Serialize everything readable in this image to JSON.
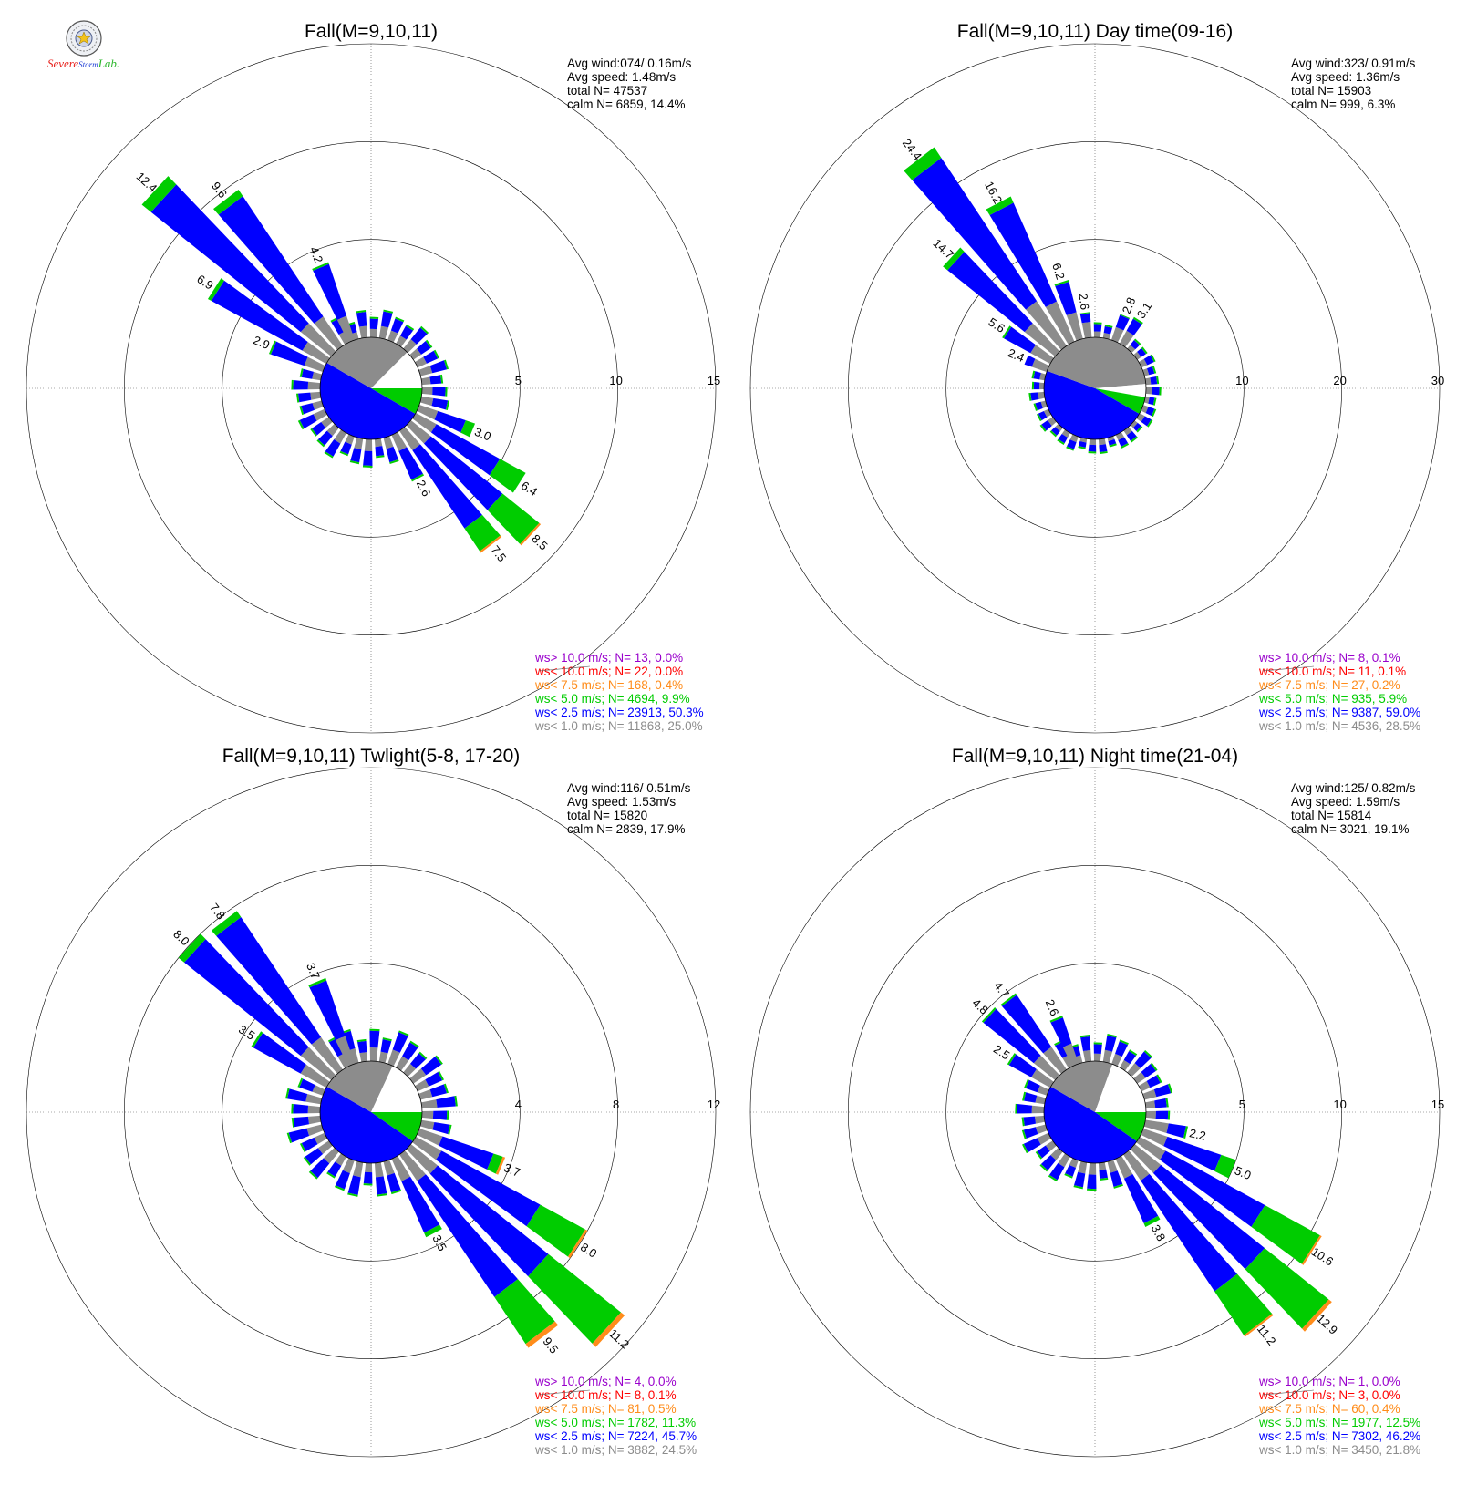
{
  "logo": {
    "line1": "Severe",
    "line2": "Storm",
    "line3": "Lab.",
    "colors": [
      "#e8231e",
      "#1f3fd6",
      "#2cb72c"
    ]
  },
  "colors": {
    "speed_bins": [
      "#8c8c8c",
      "#0000ff",
      "#00cc00",
      "#ff8c1a",
      "#ff0000",
      "#9900cc"
    ],
    "calm_wedge": "#ffffff"
  },
  "chart_data": [
    {
      "type": "windrose",
      "title": "Fall(M=9,10,11)",
      "stats": {
        "avg_wind": "Avg wind:074/ 0.16m/s",
        "avg_speed": "Avg speed: 1.48m/s",
        "total": "total N=       47537",
        "calm": "calm N=    6859,  14.4%"
      },
      "ring_labels": [
        "5",
        "10",
        "15"
      ],
      "rmax": 15,
      "petals": [
        {
          "dir": 112.5,
          "total": 3.0,
          "label": "3.0",
          "segs": [
            1.0,
            1.5,
            0.5
          ]
        },
        {
          "dir": 122.5,
          "total": 6.4,
          "label": "6.4",
          "segs": [
            1.2,
            3.7,
            1.5
          ]
        },
        {
          "dir": 132.5,
          "total": 8.5,
          "label": "8.5",
          "segs": [
            1.3,
            4.7,
            2.4,
            0.1
          ]
        },
        {
          "dir": 142.5,
          "total": 7.5,
          "label": "7.5",
          "segs": [
            1.2,
            4.8,
            1.4,
            0.1
          ]
        },
        {
          "dir": 152.5,
          "total": 2.6,
          "label": "2.6",
          "segs": [
            0.9,
            1.6,
            0.1
          ]
        },
        {
          "dir": 292.5,
          "total": 2.9,
          "label": "2.9",
          "segs": [
            1.0,
            1.8,
            0.1
          ]
        },
        {
          "dir": 302.5,
          "total": 6.9,
          "label": "6.9",
          "segs": [
            1.4,
            5.3,
            0.2
          ]
        },
        {
          "dir": 312.5,
          "total": 12.4,
          "label": "12.4",
          "segs": [
            2.0,
            9.8,
            0.6
          ]
        },
        {
          "dir": 322.5,
          "total": 9.6,
          "label": "9.6",
          "segs": [
            1.8,
            7.4,
            0.4
          ]
        },
        {
          "dir": 337.5,
          "total": 4.2,
          "label": "4.2",
          "segs": [
            1.3,
            2.8,
            0.1
          ]
        }
      ],
      "legend": [
        {
          "text": "ws> 10.0 m/s; N=    13,  0.0%",
          "color": "#9900cc"
        },
        {
          "text": "ws< 10.0 m/s; N=    22,  0.0%",
          "color": "#ff0000"
        },
        {
          "text": "ws<  7.5 m/s; N=   168,  0.4%",
          "color": "#ff8c1a"
        },
        {
          "text": "ws<  5.0 m/s; N=  4694,  9.9%",
          "color": "#00cc00"
        },
        {
          "text": "ws<  2.5 m/s; N= 23913, 50.3%",
          "color": "#0000ff"
        },
        {
          "text": "ws<  1.0 m/s; N= 11868, 25.0%",
          "color": "#8c8c8c"
        }
      ]
    },
    {
      "type": "windrose",
      "title": "Fall(M=9,10,11) Day time(09-16)",
      "stats": {
        "avg_wind": "Avg wind:323/ 0.91m/s",
        "avg_speed": "Avg speed: 1.36m/s",
        "total": "total N=       15903",
        "calm": "calm N=     999,   6.3%"
      },
      "ring_labels": [
        "10",
        "20",
        "30"
      ],
      "rmax": 30,
      "petals": [
        {
          "dir": 22.5,
          "total": 2.8,
          "label": "2.8",
          "segs": [
            1.4,
            1.3,
            0.1
          ]
        },
        {
          "dir": 32.5,
          "total": 3.1,
          "label": "3.1",
          "segs": [
            1.5,
            1.4,
            0.2
          ]
        },
        {
          "dir": 292.5,
          "total": 2.4,
          "label": "2.4",
          "segs": [
            1.6,
            0.8
          ]
        },
        {
          "dir": 302.5,
          "total": 5.6,
          "label": "5.6",
          "segs": [
            2.3,
            3.1,
            0.2
          ]
        },
        {
          "dir": 312.5,
          "total": 14.7,
          "label": "14.7",
          "segs": [
            4.0,
            10.1,
            0.6
          ]
        },
        {
          "dir": 322.5,
          "total": 24.4,
          "label": "24.4",
          "segs": [
            5.5,
            17.6,
            1.3
          ]
        },
        {
          "dir": 332.5,
          "total": 16.2,
          "label": "16.2",
          "segs": [
            4.5,
            11.0,
            0.7
          ]
        },
        {
          "dir": 342.5,
          "total": 6.2,
          "label": "6.2",
          "segs": [
            2.8,
            3.2,
            0.2
          ]
        },
        {
          "dir": 352.5,
          "total": 2.6,
          "label": "2.6",
          "segs": [
            1.6,
            0.9,
            0.1
          ]
        }
      ],
      "legend": [
        {
          "text": "ws> 10.0 m/s; N=     8,  0.1%",
          "color": "#9900cc"
        },
        {
          "text": "ws< 10.0 m/s; N=    11,  0.1%",
          "color": "#ff0000"
        },
        {
          "text": "ws<  7.5 m/s; N=    27,  0.2%",
          "color": "#ff8c1a"
        },
        {
          "text": "ws<  5.0 m/s; N=   935,  5.9%",
          "color": "#00cc00"
        },
        {
          "text": "ws<  2.5 m/s; N=  9387, 59.0%",
          "color": "#0000ff"
        },
        {
          "text": "ws<  1.0 m/s; N=  4536, 28.5%",
          "color": "#8c8c8c"
        }
      ]
    },
    {
      "type": "windrose",
      "title": "Fall(M=9,10,11) Twlight(5-8, 17-20)",
      "stats": {
        "avg_wind": "Avg wind:116/ 0.51m/s",
        "avg_speed": "Avg speed: 1.53m/s",
        "total": "total N=       15820",
        "calm": "calm N=    2839,  17.9%"
      },
      "ring_labels": [
        "4",
        "8",
        "12"
      ],
      "rmax": 12,
      "petals": [
        {
          "dir": 112.5,
          "total": 3.7,
          "label": "3.7",
          "segs": [
            1.0,
            2.2,
            0.4,
            0.1
          ]
        },
        {
          "dir": 122.5,
          "total": 8.0,
          "label": "8.0",
          "segs": [
            1.2,
            4.6,
            2.1,
            0.1
          ]
        },
        {
          "dir": 132.5,
          "total": 11.2,
          "label": "11.2",
          "segs": [
            1.4,
            5.8,
            3.8,
            0.2
          ]
        },
        {
          "dir": 142.5,
          "total": 9.5,
          "label": "9.5",
          "segs": [
            1.3,
            5.7,
            2.3,
            0.2
          ]
        },
        {
          "dir": 152.5,
          "total": 3.5,
          "label": "3.5",
          "segs": [
            1.0,
            2.3,
            0.2
          ]
        },
        {
          "dir": 302.5,
          "total": 3.5,
          "label": "3.5",
          "segs": [
            1.2,
            2.2,
            0.1
          ]
        },
        {
          "dir": 312.5,
          "total": 8.0,
          "label": "8.0",
          "segs": [
            1.6,
            6.1,
            0.3
          ]
        },
        {
          "dir": 322.5,
          "total": 7.8,
          "label": "7.8",
          "segs": [
            1.6,
            5.9,
            0.3
          ]
        },
        {
          "dir": 337.5,
          "total": 3.7,
          "label": "3.7",
          "segs": [
            1.2,
            2.4,
            0.1
          ]
        }
      ],
      "legend": [
        {
          "text": "ws> 10.0 m/s; N=     4,  0.0%",
          "color": "#9900cc"
        },
        {
          "text": "ws< 10.0 m/s; N=     8,  0.1%",
          "color": "#ff0000"
        },
        {
          "text": "ws<  7.5 m/s; N=    81,  0.5%",
          "color": "#ff8c1a"
        },
        {
          "text": "ws<  5.0 m/s; N=  1782, 11.3%",
          "color": "#00cc00"
        },
        {
          "text": "ws<  2.5 m/s; N=  7224, 45.7%",
          "color": "#0000ff"
        },
        {
          "text": "ws<  1.0 m/s; N=  3882, 24.5%",
          "color": "#8c8c8c"
        }
      ]
    },
    {
      "type": "windrose",
      "title": "Fall(M=9,10,11) Night time(21-04)",
      "stats": {
        "avg_wind": "Avg wind:125/ 0.82m/s",
        "avg_speed": "Avg speed: 1.59m/s",
        "total": "total N=       15814",
        "calm": "calm N=    3021,  19.1%"
      },
      "ring_labels": [
        "5",
        "10",
        "15"
      ],
      "rmax": 15,
      "petals": [
        {
          "dir": 102.5,
          "total": 2.2,
          "label": "2.2",
          "segs": [
            1.2,
            0.9,
            0.1
          ]
        },
        {
          "dir": 112.5,
          "total": 5.0,
          "label": "5.0",
          "segs": [
            1.3,
            2.9,
            0.8
          ]
        },
        {
          "dir": 122.5,
          "total": 10.6,
          "label": "10.6",
          "segs": [
            1.5,
            5.8,
            3.2,
            0.1
          ]
        },
        {
          "dir": 132.5,
          "total": 12.9,
          "label": "12.9",
          "segs": [
            1.7,
            6.8,
            4.2,
            0.2
          ]
        },
        {
          "dir": 142.5,
          "total": 11.2,
          "label": "11.2",
          "segs": [
            1.6,
            6.8,
            2.7,
            0.1
          ]
        },
        {
          "dir": 152.5,
          "total": 3.8,
          "label": "3.8",
          "segs": [
            1.1,
            2.5,
            0.2
          ]
        },
        {
          "dir": 302.5,
          "total": 2.5,
          "label": "2.5",
          "segs": [
            1.1,
            1.3,
            0.1
          ]
        },
        {
          "dir": 312.5,
          "total": 4.8,
          "label": "4.8",
          "segs": [
            1.4,
            3.3,
            0.1
          ]
        },
        {
          "dir": 322.5,
          "total": 4.7,
          "label": "4.7",
          "segs": [
            1.4,
            3.2,
            0.1
          ]
        },
        {
          "dir": 337.5,
          "total": 2.6,
          "label": "2.6",
          "segs": [
            1.1,
            1.4,
            0.1
          ]
        }
      ],
      "legend": [
        {
          "text": "ws> 10.0 m/s; N=     1,  0.0%",
          "color": "#9900cc"
        },
        {
          "text": "ws< 10.0 m/s; N=     3,  0.0%",
          "color": "#ff0000"
        },
        {
          "text": "ws<  7.5 m/s; N=    60,  0.4%",
          "color": "#ff8c1a"
        },
        {
          "text": "ws<  5.0 m/s; N=  1977, 12.5%",
          "color": "#00cc00"
        },
        {
          "text": "ws<  2.5 m/s; N=  7302, 46.2%",
          "color": "#0000ff"
        },
        {
          "text": "ws<  1.0 m/s; N=  3450, 21.8%",
          "color": "#8c8c8c"
        }
      ]
    }
  ]
}
